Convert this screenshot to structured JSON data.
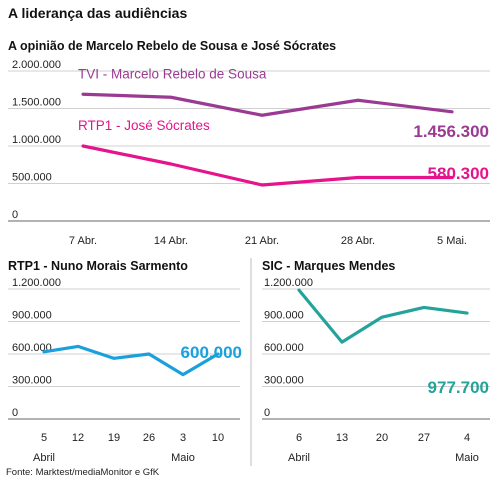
{
  "title": "A liderança das audiências",
  "source": "Fonte: Marktest/mediaMonitor e GfK",
  "colors": {
    "tvi": "#9b3a93",
    "rtp1": "#e6138c",
    "blue": "#1aa0dc",
    "teal": "#23a39a"
  },
  "chart_data": [
    {
      "type": "line",
      "title": "A opinião de Marcelo Rebelo de Sousa e José Sócrates",
      "categories": [
        "7 Abr.",
        "14 Abr.",
        "21 Abr.",
        "28 Abr.",
        "5 Mai."
      ],
      "ylim": [
        0,
        2000000
      ],
      "yticks": [
        "0",
        "500.000",
        "1.000.000",
        "1.500.000",
        "2.000.000"
      ],
      "series": [
        {
          "name": "TVI - Marcelo Rebelo de Sousa",
          "color": "#9b3a93",
          "values": [
            1690000,
            1650000,
            1410000,
            1610000,
            1456300
          ],
          "end_label": "1.456.300"
        },
        {
          "name": "RTP1 - José Sócrates",
          "color": "#e6138c",
          "values": [
            1000000,
            760000,
            480000,
            580000,
            580300
          ],
          "end_label": "580.300"
        }
      ],
      "grid": true
    },
    {
      "type": "line",
      "title": "RTP1 - Nuno Morais Sarmento",
      "categories": [
        "5",
        "12",
        "19",
        "26",
        "3",
        "10"
      ],
      "month_labels": [
        {
          "text": "Abril",
          "index": 0
        },
        {
          "text": "Maio",
          "index": 4
        }
      ],
      "ylim": [
        0,
        1200000
      ],
      "yticks": [
        "0",
        "300.000",
        "600.000",
        "900.000",
        "1.200.000"
      ],
      "series": [
        {
          "color": "#1aa0dc",
          "values": [
            620000,
            670000,
            560000,
            600000,
            410000,
            600000
          ],
          "end_label": "600.000"
        }
      ],
      "grid": true
    },
    {
      "type": "line",
      "title": "SIC - Marques Mendes",
      "categories": [
        "6",
        "13",
        "20",
        "27",
        "4"
      ],
      "month_labels": [
        {
          "text": "Abril",
          "index": 0
        },
        {
          "text": "Maio",
          "index": 4
        }
      ],
      "ylim": [
        0,
        1200000
      ],
      "yticks": [
        "0",
        "300.000",
        "600.000",
        "900.000",
        "1.200.000"
      ],
      "series": [
        {
          "color": "#23a39a",
          "values": [
            1190000,
            710000,
            940000,
            1030000,
            977700
          ],
          "end_label": "977.700"
        }
      ],
      "grid": true
    }
  ]
}
